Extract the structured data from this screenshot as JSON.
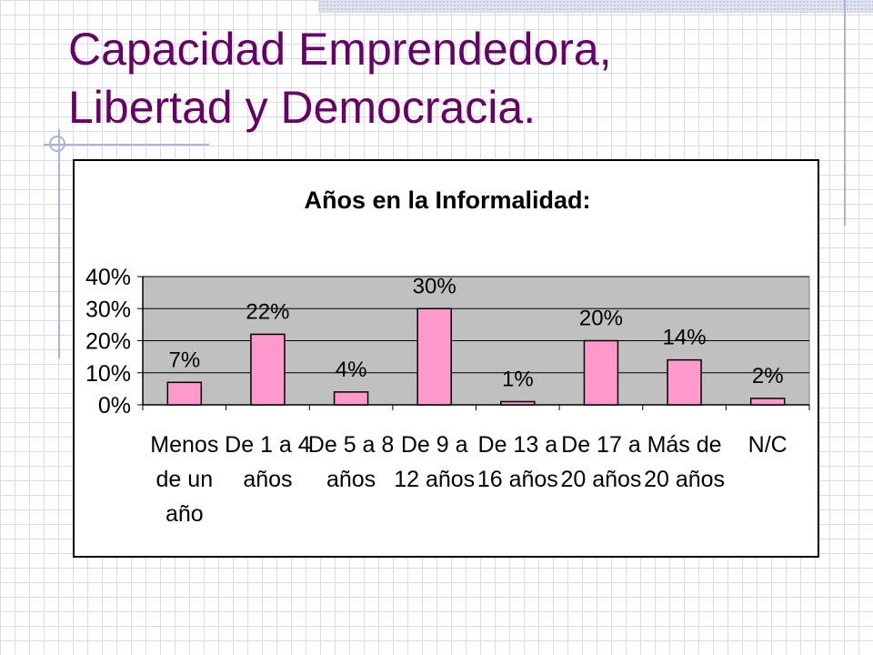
{
  "slide": {
    "title_line1": "Capacidad Emprendedora,",
    "title_line2": "Libertad y Democracia."
  },
  "chart_data": {
    "type": "bar",
    "title": "Años en la Informalidad:",
    "categories": [
      [
        "Menos",
        "de un",
        "año"
      ],
      [
        "De 1 a 4",
        "años"
      ],
      [
        "De 5 a 8",
        "años"
      ],
      [
        "De 9 a",
        "12 años"
      ],
      [
        "De 13 a",
        "16 años"
      ],
      [
        "De 17 a",
        "20 años"
      ],
      [
        "Más de",
        "20 años"
      ],
      [
        "N/C"
      ]
    ],
    "values": [
      7,
      22,
      4,
      30,
      1,
      20,
      14,
      2
    ],
    "data_labels": [
      "7%",
      "22%",
      "4%",
      "30%",
      "1%",
      "20%",
      "14%",
      "2%"
    ],
    "y_ticks": [
      "0%",
      "10%",
      "20%",
      "30%",
      "40%"
    ],
    "ylim": [
      0,
      40
    ],
    "grid": true,
    "colors": {
      "bar_fill": "#ff99cc",
      "bar_stroke": "#000000",
      "plot_background": "#c0c0c0",
      "gridline": "#000000"
    }
  }
}
